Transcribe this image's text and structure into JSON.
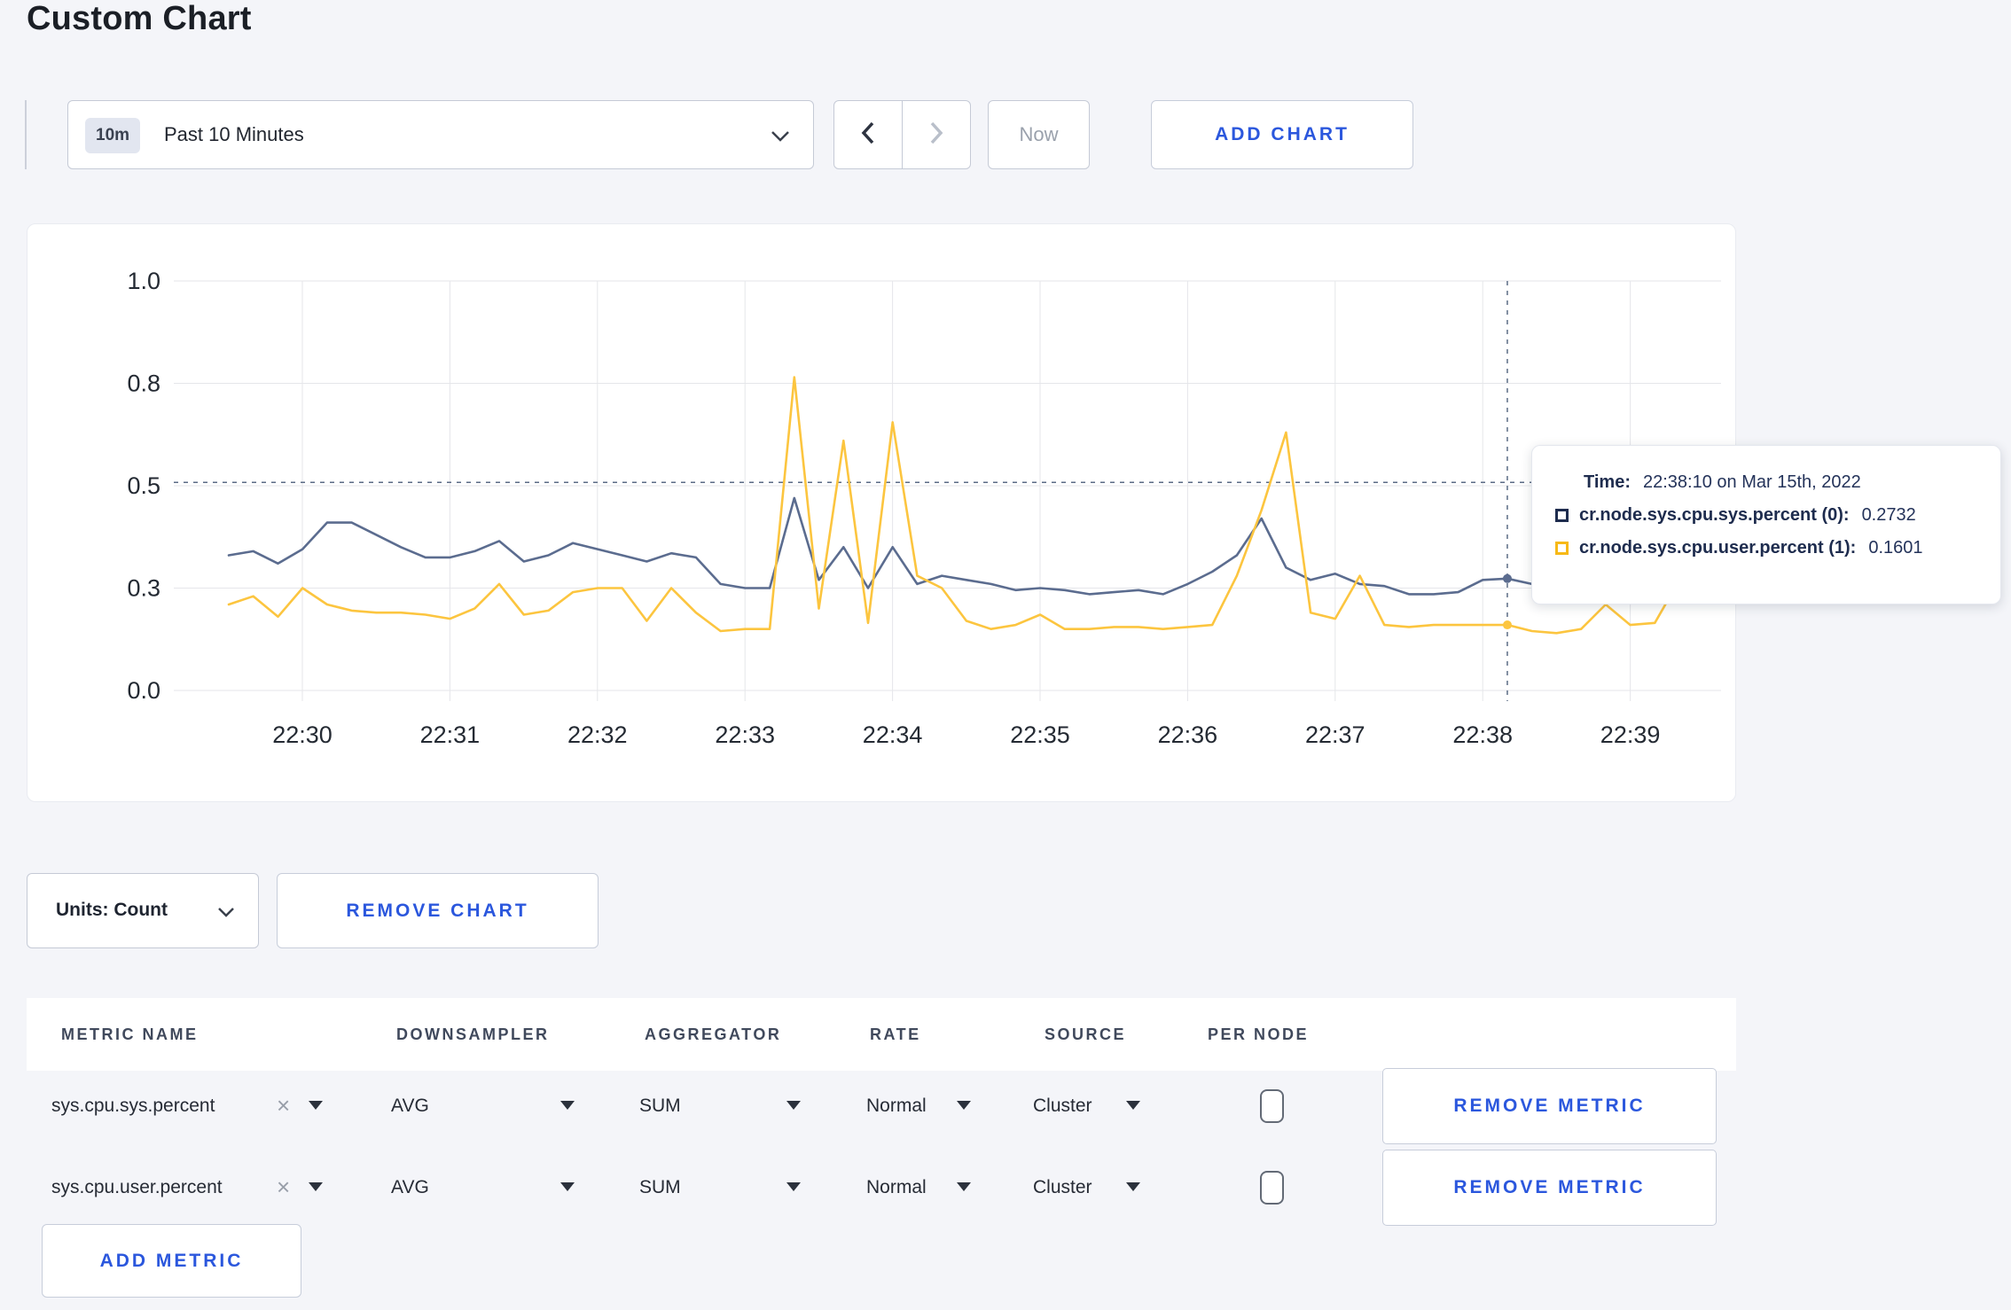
{
  "page": {
    "title": "Custom Chart"
  },
  "colors": {
    "accent_blue": "#2b57dd",
    "series_sys": "#5b6c8f",
    "series_user": "#fcc53f",
    "tooltip_navy": "#1e2c4e",
    "tooltip_yellow": "#f7b917"
  },
  "toolbar": {
    "time_range_badge": "10m",
    "time_range_label": "Past 10 Minutes",
    "now_label": "Now",
    "add_chart_label": "ADD CHART"
  },
  "chart_data": {
    "type": "line",
    "title": "",
    "xlabel": "",
    "ylabel": "",
    "ylim": [
      0,
      1
    ],
    "grid": true,
    "x_ticks": [
      "22:30",
      "22:31",
      "22:32",
      "22:33",
      "22:34",
      "22:35",
      "22:36",
      "22:37",
      "22:38",
      "22:39"
    ],
    "y_ticks": [
      {
        "label": "0.0",
        "value": 0
      },
      {
        "label": "0.3",
        "value": 0.25
      },
      {
        "label": "0.5",
        "value": 0.5
      },
      {
        "label": "0.8",
        "value": 0.75
      },
      {
        "label": "1.0",
        "value": 1
      }
    ],
    "x_times": [
      "22:29:30",
      "22:29:40",
      "22:29:50",
      "22:30:00",
      "22:30:10",
      "22:30:20",
      "22:30:30",
      "22:30:40",
      "22:30:50",
      "22:31:00",
      "22:31:10",
      "22:31:20",
      "22:31:30",
      "22:31:40",
      "22:31:50",
      "22:32:00",
      "22:32:10",
      "22:32:20",
      "22:32:30",
      "22:32:40",
      "22:32:50",
      "22:33:00",
      "22:33:10",
      "22:33:20",
      "22:33:30",
      "22:33:40",
      "22:33:50",
      "22:34:00",
      "22:34:10",
      "22:34:20",
      "22:34:30",
      "22:34:40",
      "22:34:50",
      "22:35:00",
      "22:35:10",
      "22:35:20",
      "22:35:30",
      "22:35:40",
      "22:35:50",
      "22:36:00",
      "22:36:10",
      "22:36:20",
      "22:36:30",
      "22:36:40",
      "22:36:50",
      "22:37:00",
      "22:37:10",
      "22:37:20",
      "22:37:30",
      "22:37:40",
      "22:37:50",
      "22:38:00",
      "22:38:10",
      "22:38:20",
      "22:38:30",
      "22:38:40",
      "22:38:50",
      "22:39:00",
      "22:39:10",
      "22:39:20"
    ],
    "series": [
      {
        "id": "sys",
        "name": "cr.node.sys.cpu.sys.percent (0)",
        "color": "#5b6c8f",
        "values": [
          0.33,
          0.34,
          0.31,
          0.345,
          0.41,
          0.41,
          0.38,
          0.35,
          0.325,
          0.325,
          0.34,
          0.365,
          0.315,
          0.33,
          0.36,
          0.345,
          0.33,
          0.315,
          0.335,
          0.325,
          0.26,
          0.25,
          0.25,
          0.47,
          0.27,
          0.35,
          0.25,
          0.35,
          0.26,
          0.28,
          0.27,
          0.26,
          0.245,
          0.25,
          0.245,
          0.235,
          0.24,
          0.245,
          0.235,
          0.26,
          0.29,
          0.33,
          0.42,
          0.3,
          0.27,
          0.285,
          0.26,
          0.255,
          0.235,
          0.235,
          0.24,
          0.27,
          0.2732,
          0.26,
          0.25,
          0.26,
          0.305,
          0.31,
          0.295,
          0.3
        ]
      },
      {
        "id": "user",
        "name": "cr.node.sys.cpu.user.percent (1)",
        "color": "#fcc53f",
        "values": [
          0.21,
          0.23,
          0.18,
          0.25,
          0.21,
          0.195,
          0.19,
          0.19,
          0.185,
          0.175,
          0.2,
          0.26,
          0.185,
          0.195,
          0.24,
          0.25,
          0.25,
          0.17,
          0.25,
          0.19,
          0.145,
          0.15,
          0.15,
          0.765,
          0.2,
          0.61,
          0.165,
          0.655,
          0.28,
          0.25,
          0.17,
          0.15,
          0.16,
          0.185,
          0.15,
          0.15,
          0.155,
          0.155,
          0.15,
          0.155,
          0.16,
          0.28,
          0.44,
          0.63,
          0.19,
          0.175,
          0.28,
          0.16,
          0.155,
          0.16,
          0.16,
          0.16,
          0.1601,
          0.145,
          0.14,
          0.15,
          0.21,
          0.16,
          0.165,
          0.27
        ]
      }
    ],
    "crosshair": {
      "index": 52,
      "time": "22:38:10",
      "guideline_value": 0.508
    },
    "legend_position": "tooltip"
  },
  "tooltip": {
    "time_label": "Time:",
    "time_value": "22:38:10 on Mar 15th, 2022",
    "rows": [
      {
        "label": "cr.node.sys.cpu.sys.percent (0):",
        "value": "0.2732",
        "color": "#1e2c4e"
      },
      {
        "label": "cr.node.sys.cpu.user.percent (1):",
        "value": "0.1601",
        "color": "#f7b917"
      }
    ]
  },
  "units": {
    "label": "Units: Count"
  },
  "remove_chart_label": "REMOVE CHART",
  "metrics_table": {
    "headers": [
      "METRIC NAME",
      "DOWNSAMPLER",
      "AGGREGATOR",
      "RATE",
      "SOURCE",
      "PER NODE"
    ],
    "remove_metric_label": "REMOVE METRIC",
    "add_metric_label": "ADD METRIC",
    "rows": [
      {
        "name": "sys.cpu.sys.percent",
        "downsampler": "AVG",
        "aggregator": "SUM",
        "rate": "Normal",
        "source": "Cluster",
        "per_node_checked": false
      },
      {
        "name": "sys.cpu.user.percent",
        "downsampler": "AVG",
        "aggregator": "SUM",
        "rate": "Normal",
        "source": "Cluster",
        "per_node_checked": false
      }
    ]
  },
  "icons": {
    "clear": "×"
  }
}
